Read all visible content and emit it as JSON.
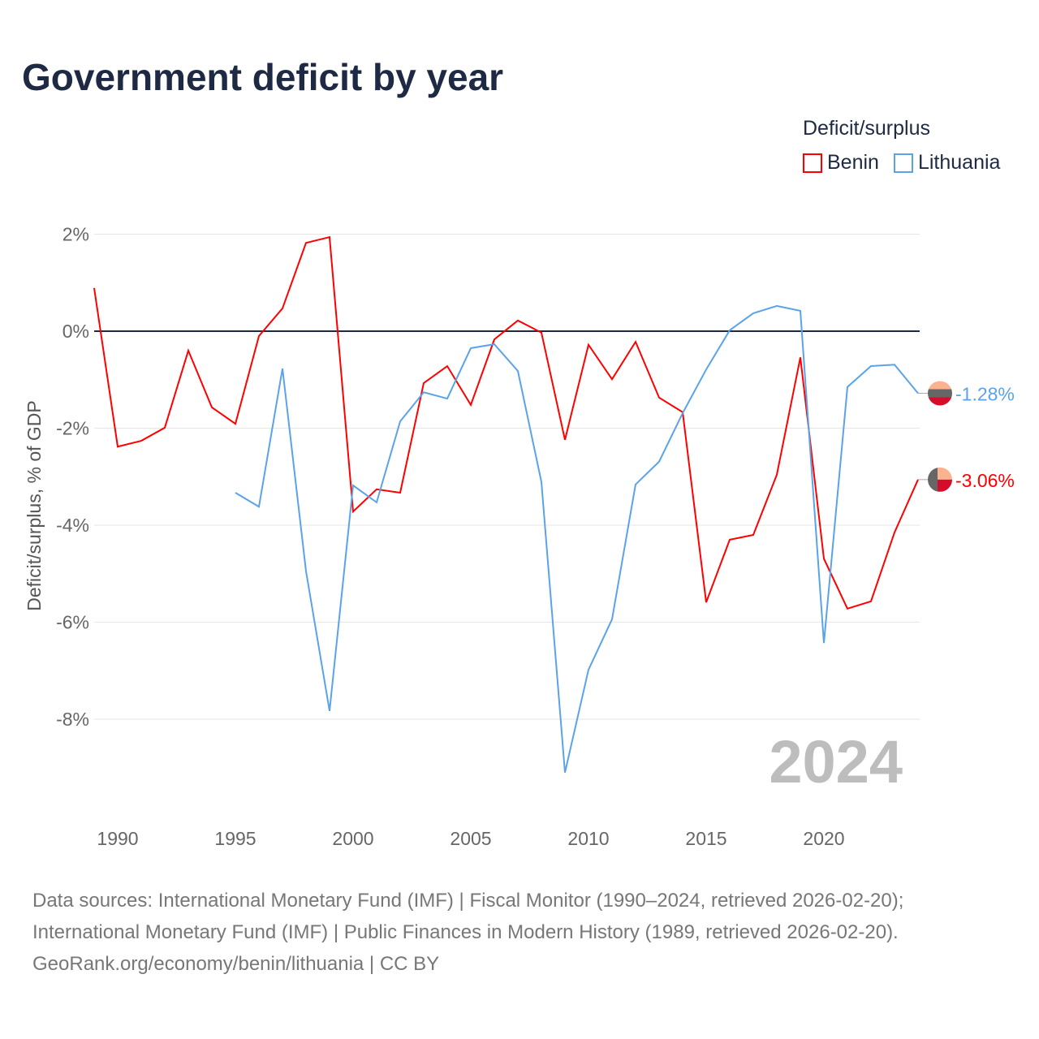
{
  "chart_data": {
    "type": "line",
    "title": "Government deficit by year",
    "ylabel": "Deficit/surplus, % of GDP",
    "xlabel": "",
    "xlim": [
      1989,
      2024
    ],
    "ylim": [
      -9.5,
      2.5
    ],
    "x_ticks": [
      1990,
      1995,
      2000,
      2005,
      2010,
      2015,
      2020
    ],
    "x_tick_labels": [
      "1990",
      "1995",
      "2000",
      "2005",
      "2010",
      "2015",
      "2020"
    ],
    "y_ticks": [
      2,
      0,
      -2,
      -4,
      -6,
      -8
    ],
    "y_tick_labels": [
      "2%",
      "0%",
      "-2%",
      "-4%",
      "-6%",
      "-8%"
    ],
    "grid": true,
    "legend_title": "Deficit/surplus",
    "legend_position": "top-right",
    "year_label": "2024",
    "series": [
      {
        "name": "Benin",
        "color": "#ff0000",
        "end_label": "-3.06%",
        "x": [
          1989,
          1990,
          1991,
          1992,
          1993,
          1994,
          1995,
          1996,
          1997,
          1998,
          1999,
          2000,
          2001,
          2002,
          2003,
          2004,
          2005,
          2006,
          2007,
          2008,
          2009,
          2010,
          2011,
          2012,
          2013,
          2014,
          2015,
          2016,
          2017,
          2018,
          2019,
          2020,
          2021,
          2022,
          2023,
          2024
        ],
        "values": [
          0.89,
          -2.38,
          -2.26,
          -1.99,
          -0.4,
          -1.57,
          -1.91,
          -0.1,
          0.47,
          1.82,
          1.94,
          -3.72,
          -3.26,
          -3.33,
          -1.07,
          -0.72,
          -1.52,
          -0.17,
          0.22,
          -0.03,
          -2.24,
          -0.28,
          -0.99,
          -0.22,
          -1.37,
          -1.67,
          -5.59,
          -4.3,
          -4.2,
          -2.96,
          -0.54,
          -4.69,
          -5.72,
          -5.57,
          -4.15,
          -3.06
        ]
      },
      {
        "name": "Lithuania",
        "color": "#5ba3e8",
        "end_label": "-1.28%",
        "x": [
          1995,
          1996,
          1997,
          1998,
          1999,
          2000,
          2001,
          2002,
          2003,
          2004,
          2005,
          2006,
          2007,
          2008,
          2009,
          2010,
          2011,
          2012,
          2013,
          2014,
          2015,
          2016,
          2017,
          2018,
          2019,
          2020,
          2021,
          2022,
          2023,
          2024
        ],
        "values": [
          -3.33,
          -3.62,
          -0.77,
          -4.95,
          -7.83,
          -3.18,
          -3.53,
          -1.86,
          -1.26,
          -1.39,
          -0.35,
          -0.27,
          -0.82,
          -3.11,
          -9.1,
          -6.98,
          -5.94,
          -3.16,
          -2.69,
          -1.69,
          -0.79,
          0.02,
          0.37,
          0.52,
          0.42,
          -6.43,
          -1.15,
          -0.72,
          -0.69,
          -1.28
        ]
      }
    ]
  },
  "source": {
    "line1": "Data sources: International Monetary Fund (IMF) | Fiscal Monitor (1990–2024, retrieved 2026-02-20);",
    "line2": "International Monetary Fund (IMF) | Public Finances in Modern History (1989, retrieved 2026-02-20).",
    "line3": "GeoRank.org/economy/benin/lithuania | CC BY"
  }
}
